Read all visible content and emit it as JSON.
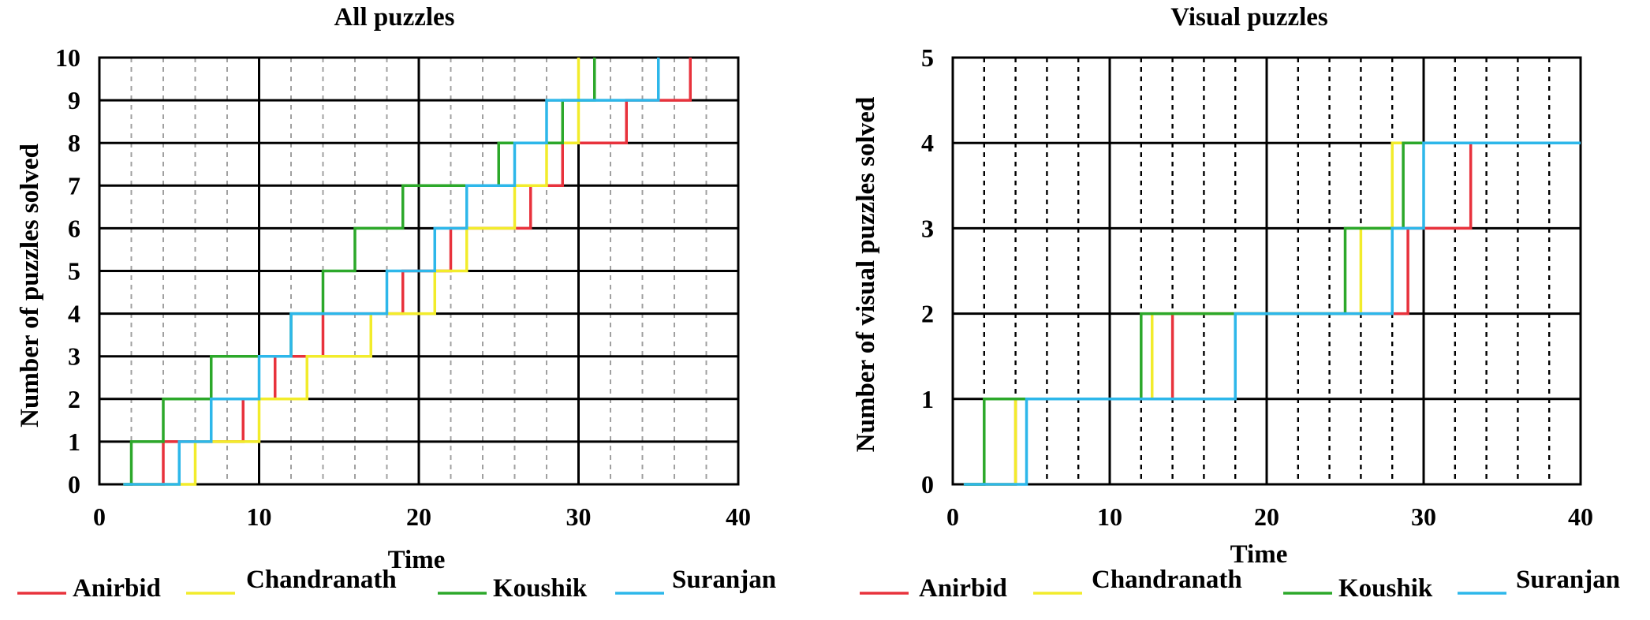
{
  "colors": {
    "Anirbid": "#e8323c",
    "Chandranath": "#f2ec2b",
    "Koushik": "#2ca82a",
    "Suranjan": "#2db7ea"
  },
  "chart_data": [
    {
      "type": "line",
      "step": true,
      "title": "All puzzles",
      "xlabel": "Time",
      "ylabel": "Number of puzzles solved",
      "xlim": [
        0,
        40
      ],
      "ylim": [
        0,
        10
      ],
      "xticks": [
        0,
        10,
        20,
        30,
        40
      ],
      "yticks": [
        0,
        1,
        2,
        3,
        4,
        5,
        6,
        7,
        8,
        9,
        10
      ],
      "grid": true,
      "legend_position": "bottom",
      "series": [
        {
          "name": "Anirbid",
          "start": 1.5,
          "x": [
            4,
            9,
            11,
            14,
            19,
            22,
            27,
            29,
            33,
            37
          ]
        },
        {
          "name": "Chandranath",
          "start": 1.5,
          "x": [
            6,
            10,
            13,
            17,
            21,
            23,
            26,
            28,
            30,
            30
          ]
        },
        {
          "name": "Koushik",
          "start": 1.5,
          "x": [
            2,
            4,
            7,
            12,
            14,
            16,
            19,
            25,
            29,
            31
          ]
        },
        {
          "name": "Suranjan",
          "start": 1.5,
          "x": [
            5,
            7,
            10,
            12,
            18,
            21,
            23,
            26,
            28,
            35
          ]
        }
      ]
    },
    {
      "type": "line",
      "step": true,
      "title": "Visual puzzles",
      "xlabel": "Time",
      "ylabel": "Number of visual puzzles solved",
      "xlim": [
        0,
        40
      ],
      "ylim": [
        0,
        5
      ],
      "xticks": [
        0,
        10,
        20,
        30,
        40
      ],
      "yticks": [
        0,
        1,
        2,
        3,
        4,
        5
      ],
      "grid": true,
      "legend_position": "bottom",
      "series": [
        {
          "name": "Anirbid",
          "start": 0.7,
          "x": [
            4,
            14,
            29,
            33
          ]
        },
        {
          "name": "Chandranath",
          "start": 0.7,
          "x": [
            4,
            12.7,
            26,
            28
          ]
        },
        {
          "name": "Koushik",
          "start": 0.7,
          "x": [
            2,
            12,
            25,
            28.7
          ]
        },
        {
          "name": "Suranjan",
          "start": 0.7,
          "x": [
            4.7,
            18,
            28,
            30
          ]
        }
      ]
    }
  ],
  "legend": [
    "Anirbid",
    "Chandranath",
    "Koushik",
    "Suranjan"
  ]
}
